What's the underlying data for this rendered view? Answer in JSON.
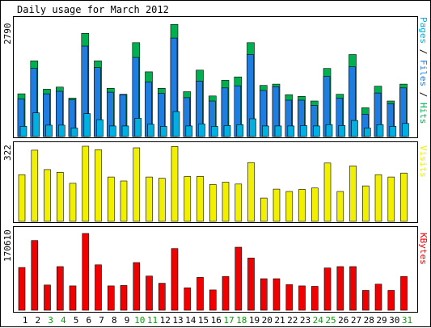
{
  "chart_data": [
    {
      "type": "bar",
      "title": "Daily usage for March 2012",
      "ymax_label": "2790",
      "legend": [
        {
          "name": "Pages",
          "color": "#00b0e0"
        },
        {
          "name": "Files",
          "color": "#1f7de0"
        },
        {
          "name": "Hits",
          "color": "#00b050"
        }
      ],
      "legend_sep": "/",
      "ylim": [
        0,
        2790
      ],
      "categories": [
        "1",
        "2",
        "3",
        "4",
        "5",
        "6",
        "7",
        "8",
        "9",
        "10",
        "11",
        "12",
        "13",
        "14",
        "15",
        "16",
        "17",
        "18",
        "19",
        "20",
        "21",
        "22",
        "23",
        "24",
        "25",
        "26",
        "27",
        "28",
        "29",
        "30",
        "31"
      ],
      "series": [
        {
          "name": "Hits",
          "values": [
            1010,
            1790,
            1120,
            1170,
            910,
            2440,
            1790,
            1140,
            1000,
            2220,
            1530,
            1140,
            2650,
            1060,
            1570,
            960,
            1330,
            1410,
            2220,
            1210,
            1240,
            990,
            950,
            840,
            1610,
            1000,
            1940,
            680,
            1190,
            840,
            1240
          ]
        },
        {
          "name": "Files",
          "values": [
            890,
            1610,
            1010,
            1070,
            870,
            2140,
            1630,
            1050,
            990,
            1870,
            1290,
            1020,
            2330,
            920,
            1310,
            840,
            1150,
            1200,
            1940,
            1090,
            1180,
            860,
            860,
            740,
            1420,
            910,
            1650,
            530,
            1030,
            780,
            1150
          ]
        },
        {
          "name": "Pages",
          "values": [
            240,
            560,
            270,
            270,
            200,
            540,
            400,
            250,
            250,
            430,
            290,
            240,
            590,
            250,
            300,
            240,
            260,
            280,
            420,
            250,
            250,
            250,
            260,
            250,
            280,
            260,
            380,
            200,
            280,
            240,
            310
          ]
        }
      ]
    },
    {
      "type": "bar",
      "ymax_label": "322",
      "legend": [
        {
          "name": "Visits",
          "color": "#f0f000"
        }
      ],
      "ylim": [
        0,
        322
      ],
      "categories": [
        "1",
        "2",
        "3",
        "4",
        "5",
        "6",
        "7",
        "8",
        "9",
        "10",
        "11",
        "12",
        "13",
        "14",
        "15",
        "16",
        "17",
        "18",
        "19",
        "20",
        "21",
        "22",
        "23",
        "24",
        "25",
        "26",
        "27",
        "28",
        "29",
        "30",
        "31"
      ],
      "series": [
        {
          "name": "Visits",
          "values": [
            200,
            305,
            222,
            210,
            163,
            322,
            307,
            190,
            173,
            315,
            190,
            185,
            321,
            192,
            193,
            158,
            168,
            160,
            252,
            100,
            138,
            128,
            137,
            143,
            250,
            128,
            238,
            152,
            200,
            190,
            207
          ]
        }
      ]
    },
    {
      "type": "bar",
      "ymax_label": "170610",
      "legend": [
        {
          "name": "KBytes",
          "color": "#f00000"
        }
      ],
      "ylim": [
        0,
        170610
      ],
      "categories": [
        "1",
        "2",
        "3",
        "4",
        "5",
        "6",
        "7",
        "8",
        "9",
        "10",
        "11",
        "12",
        "13",
        "14",
        "15",
        "16",
        "17",
        "18",
        "19",
        "20",
        "21",
        "22",
        "23",
        "24",
        "25",
        "26",
        "27",
        "28",
        "29",
        "30",
        "31"
      ],
      "series": [
        {
          "name": "KBytes",
          "values": [
            95000,
            155000,
            56000,
            97000,
            54000,
            170610,
            101000,
            54000,
            55000,
            106000,
            76000,
            60000,
            137000,
            50000,
            73000,
            45000,
            75000,
            140000,
            116000,
            70000,
            70000,
            57000,
            54000,
            53000,
            94000,
            97000,
            97000,
            44000,
            58000,
            44000,
            75000
          ]
        }
      ]
    }
  ],
  "day_label_colors": {
    "weekday": "#000000",
    "weekend": "#00a000",
    "weekend_days": [
      "3",
      "4",
      "10",
      "11",
      "17",
      "18",
      "24",
      "25",
      "31"
    ]
  }
}
